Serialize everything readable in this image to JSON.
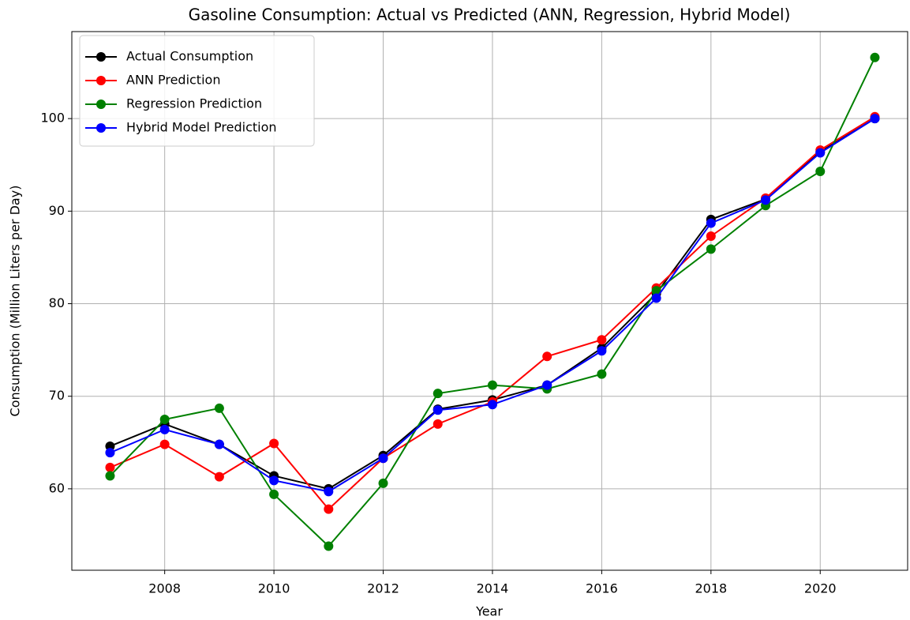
{
  "chart_data": {
    "type": "line",
    "title": "Gasoline Consumption: Actual vs Predicted (ANN, Regression, Hybrid Model)",
    "xlabel": "Year",
    "ylabel": "Consumption (Million Liters per Day)",
    "x": [
      2007,
      2008,
      2009,
      2010,
      2011,
      2012,
      2013,
      2014,
      2015,
      2016,
      2017,
      2018,
      2019,
      2020,
      2021
    ],
    "series": [
      {
        "name": "Actual Consumption",
        "color": "#000000",
        "values": [
          64.6,
          67.0,
          64.8,
          61.4,
          60.0,
          63.6,
          68.6,
          69.6,
          71.2,
          75.2,
          81.1,
          89.1,
          91.3,
          96.4,
          100.0
        ]
      },
      {
        "name": "ANN Prediction",
        "color": "#ff0000",
        "values": [
          62.3,
          64.8,
          61.3,
          64.9,
          57.8,
          63.3,
          67.0,
          69.4,
          74.3,
          76.1,
          81.7,
          87.3,
          91.4,
          96.6,
          100.2
        ]
      },
      {
        "name": "Regression Prediction",
        "color": "#008000",
        "values": [
          61.4,
          67.5,
          68.7,
          59.4,
          53.8,
          60.6,
          70.3,
          71.2,
          70.8,
          72.4,
          81.4,
          85.9,
          90.6,
          94.3,
          106.6
        ]
      },
      {
        "name": "Hybrid Model Prediction",
        "color": "#0000ff",
        "values": [
          63.9,
          66.4,
          64.8,
          60.9,
          59.7,
          63.3,
          68.5,
          69.1,
          71.2,
          74.9,
          80.6,
          88.7,
          91.2,
          96.3,
          100.0
        ]
      }
    ],
    "xlim": [
      2006.3,
      2021.6
    ],
    "xticks": [
      2008,
      2010,
      2012,
      2014,
      2016,
      2018,
      2020
    ],
    "ylim": [
      51.2,
      109.4
    ],
    "yticks": [
      60,
      70,
      80,
      90,
      100
    ],
    "grid": true,
    "legend": "upper left"
  }
}
